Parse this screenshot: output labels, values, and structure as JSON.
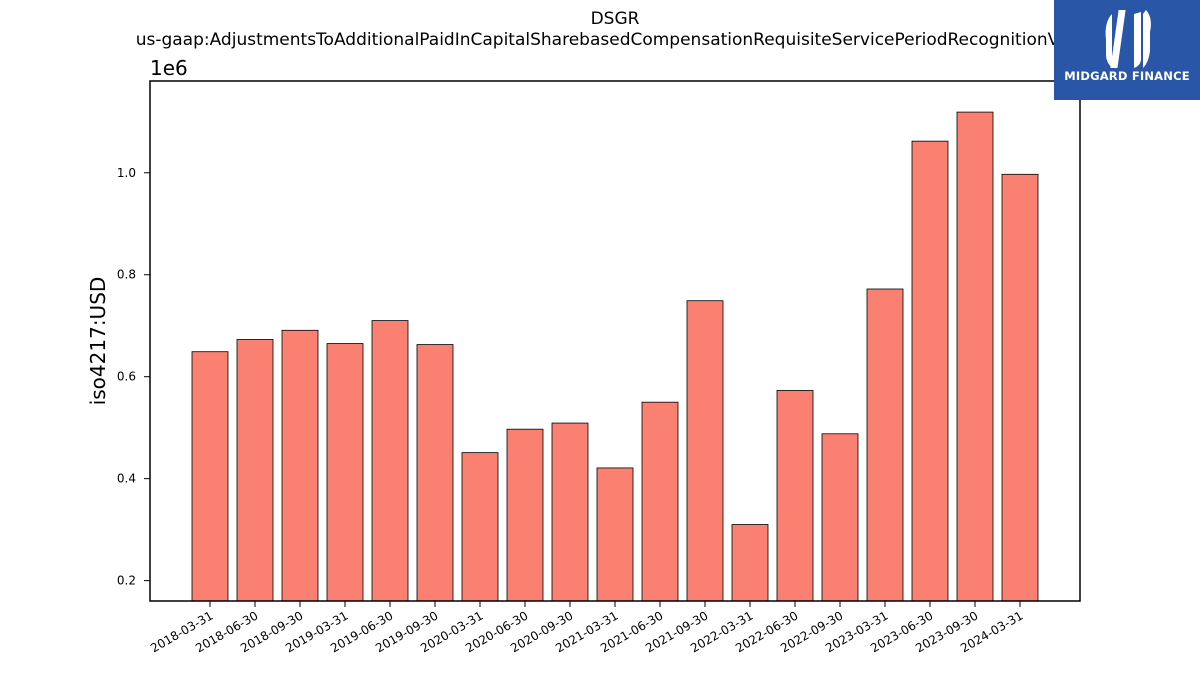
{
  "chart_data": {
    "type": "bar",
    "title": "DSGR",
    "subtitle": "us-gaap:AdjustmentsToAdditionalPaidInCapitalSharebasedCompensationRequisiteServicePeriodRecognitionValue",
    "ylabel": "iso4217:USD",
    "xlabel": "",
    "y_scale_label": "1e6",
    "ylim": [
      160000,
      1180000
    ],
    "yticks": [
      0.2,
      0.4,
      0.6,
      0.8,
      1.0
    ],
    "ytick_labels": [
      "0.2",
      "0.4",
      "0.6",
      "0.8",
      "1.0"
    ],
    "grid": false,
    "bar_color": "#fa8072",
    "categories": [
      "2018-03-31",
      "2018-06-30",
      "2018-09-30",
      "2019-03-31",
      "2019-06-30",
      "2019-09-30",
      "2020-03-31",
      "2020-06-30",
      "2020-09-30",
      "2021-03-31",
      "2021-06-30",
      "2021-09-30",
      "2022-03-31",
      "2022-06-30",
      "2022-09-30",
      "2023-03-31",
      "2023-06-30",
      "2023-09-30",
      "2024-03-31"
    ],
    "values": [
      649000,
      673000,
      691000,
      665000,
      710000,
      663000,
      451000,
      497000,
      509000,
      421000,
      550000,
      749000,
      310000,
      573000,
      488000,
      772000,
      1062000,
      1119000,
      997000
    ]
  },
  "logo": {
    "text": "MIDGARD FINANCE",
    "background": "#2a56a8"
  }
}
